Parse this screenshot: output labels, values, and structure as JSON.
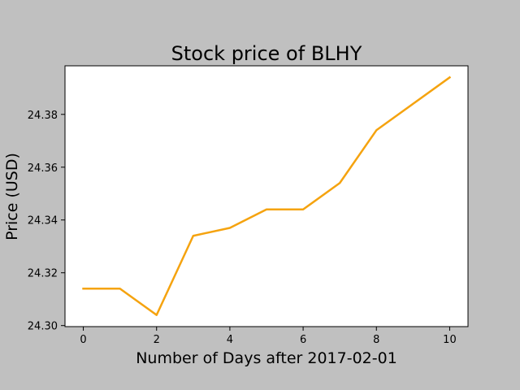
{
  "chart_data": {
    "type": "line",
    "title": "Stock price of BLHY",
    "xlabel": "Number of Days after 2017-02-01",
    "ylabel": "Price (USD)",
    "x": [
      0,
      1,
      2,
      3,
      4,
      5,
      6,
      7,
      8,
      9,
      10
    ],
    "series": [
      {
        "values": [
          24.314,
          24.314,
          24.304,
          24.334,
          24.337,
          24.344,
          24.344,
          24.354,
          24.374,
          24.384,
          24.394
        ],
        "color": "#f5a30f"
      }
    ],
    "xticks": [
      0,
      2,
      4,
      6,
      8,
      10
    ],
    "xtick_labels": [
      "0",
      "2",
      "4",
      "6",
      "8",
      "10"
    ],
    "yticks": [
      24.3,
      24.32,
      24.34,
      24.36,
      24.38
    ],
    "ytick_labels": [
      "24.30",
      "24.32",
      "24.34",
      "24.36",
      "24.38"
    ],
    "xlim": [
      -0.5,
      10.5
    ],
    "ylim": [
      24.2996,
      24.3984
    ],
    "grid": false,
    "legend": false,
    "background": "#c0c0c0",
    "plot_background": "#ffffff"
  }
}
